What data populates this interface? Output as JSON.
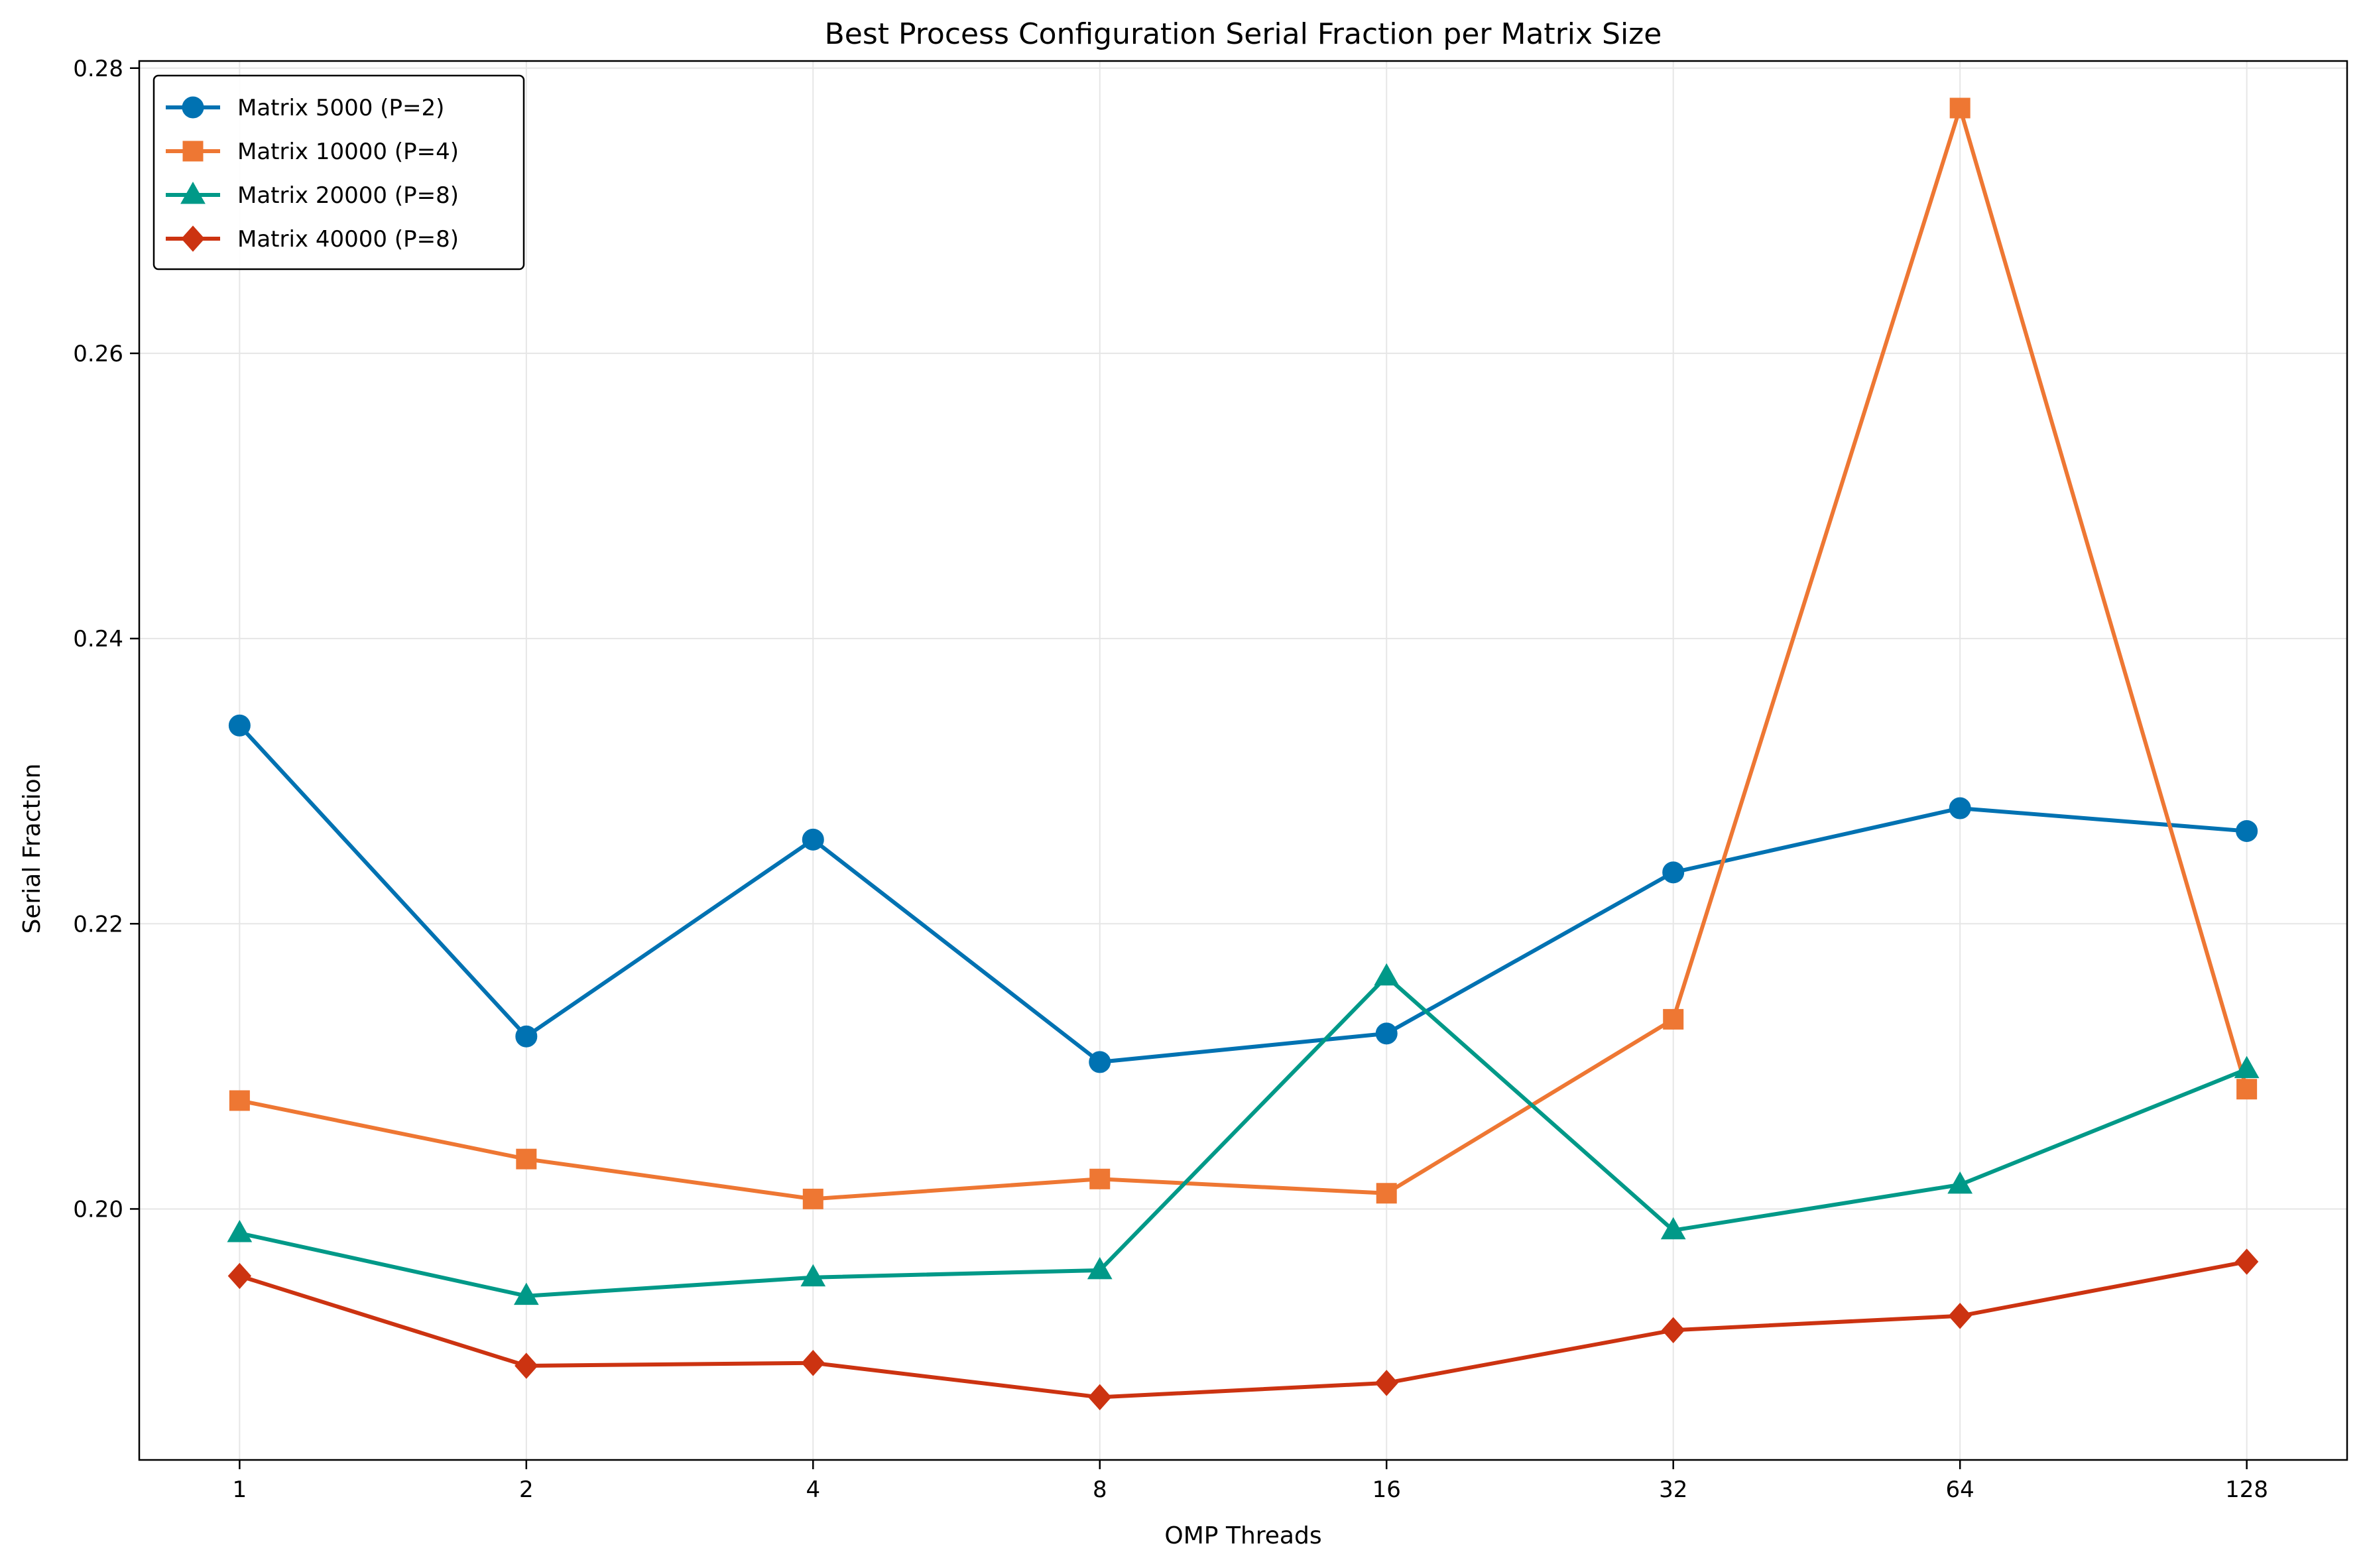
{
  "chart_data": {
    "type": "line",
    "title": "Best Process Configuration Serial Fraction per Matrix Size",
    "xlabel": "OMP Threads",
    "ylabel": "Serial Fraction",
    "x_scale": "log2",
    "categories": [
      "1",
      "2",
      "4",
      "8",
      "16",
      "32",
      "64",
      "128"
    ],
    "x": [
      1,
      2,
      4,
      8,
      16,
      32,
      64,
      128
    ],
    "ylim": [
      0.1824,
      0.2805
    ],
    "yticks": [
      "0.20",
      "0.22",
      "0.24",
      "0.26",
      "0.28"
    ],
    "ytick_values": [
      0.2,
      0.22,
      0.24,
      0.26,
      0.28
    ],
    "grid": true,
    "legend_position": "upper-left",
    "series": [
      {
        "name": "Matrix 5000 (P=2)",
        "marker": "circle",
        "color": "#0072B2",
        "values": [
          0.2339,
          0.2121,
          0.2259,
          0.2103,
          0.2123,
          0.2236,
          0.2281,
          0.2265
        ]
      },
      {
        "name": "Matrix 10000 (P=4)",
        "marker": "square",
        "color": "#EE7733",
        "values": [
          0.2076,
          0.2035,
          0.2007,
          0.2021,
          0.2011,
          0.2133,
          0.2772,
          0.2084
        ]
      },
      {
        "name": "Matrix 20000 (P=8)",
        "marker": "triangle",
        "color": "#009988",
        "values": [
          0.1983,
          0.1939,
          0.1952,
          0.1957,
          0.2163,
          0.1985,
          0.2017,
          0.2098
        ]
      },
      {
        "name": "Matrix 40000 (P=8)",
        "marker": "diamond",
        "color": "#CC3311",
        "values": [
          0.1953,
          0.189,
          0.1892,
          0.1868,
          0.1878,
          0.1915,
          0.1925,
          0.1963
        ]
      }
    ]
  }
}
